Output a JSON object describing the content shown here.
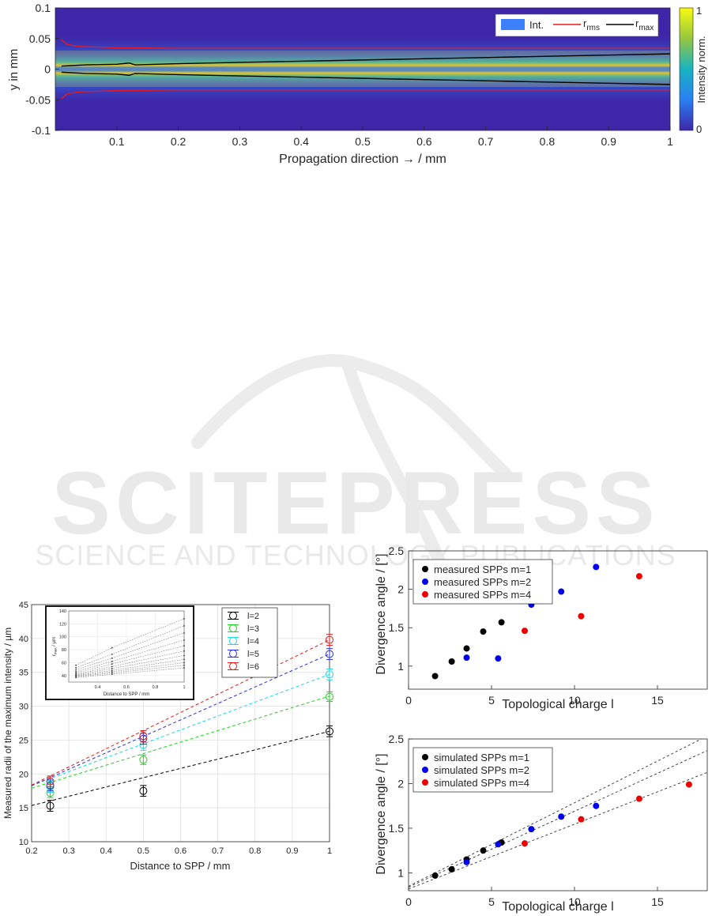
{
  "watermark": {
    "line1": "SCITEPRESS",
    "line2": "SCIENCE AND TECHNOLOGY PUBLICATIONS"
  },
  "chart_data": [
    {
      "id": "intensity",
      "type": "heatmap",
      "xlabel": "Propagation direction → / mm",
      "ylabel": "y in mm",
      "xlim": [
        0,
        1
      ],
      "ylim": [
        -0.1,
        0.1
      ],
      "xticks": [
        "0.1",
        "0.2",
        "0.3",
        "0.4",
        "0.5",
        "0.6",
        "0.7",
        "0.8",
        "0.9",
        "1"
      ],
      "yticks": [
        "0.1",
        "0.05",
        "0",
        "-0.05",
        "-0.1"
      ],
      "colorbar": {
        "label": "Intensity norm.",
        "ticks": [
          "1",
          "0"
        ]
      },
      "legend": {
        "position": "top-right",
        "entries": [
          {
            "label": "Int.",
            "color": "#3d80ff"
          },
          {
            "label": "r",
            "sub": "rms",
            "color": "#e8191c"
          },
          {
            "label": "r",
            "sub": "max",
            "color": "#000000"
          }
        ]
      },
      "series": [
        {
          "name": "rrms",
          "x": [
            0.01,
            0.02,
            0.04,
            0.07,
            0.1,
            0.2,
            0.3,
            0.5,
            0.7,
            1.0
          ],
          "y": [
            0.048,
            0.04,
            0.037,
            0.036,
            0.035,
            0.034,
            0.034,
            0.034,
            0.034,
            0.034
          ]
        },
        {
          "name": "rmax",
          "x": [
            0.01,
            0.05,
            0.1,
            0.12,
            0.13,
            0.2,
            0.3,
            0.4,
            0.5,
            0.6,
            0.7,
            0.8,
            0.9,
            1.0
          ],
          "y": [
            0.005,
            0.007,
            0.008,
            0.01,
            0.007,
            0.009,
            0.011,
            0.013,
            0.015,
            0.017,
            0.019,
            0.021,
            0.023,
            0.025
          ]
        }
      ]
    },
    {
      "id": "radii",
      "type": "scatter",
      "xlabel": "Distance to SPP / mm",
      "ylabel": "Measured radii of the maximum intensity / µm",
      "xlim": [
        0.2,
        1.0
      ],
      "ylim": [
        10,
        45
      ],
      "xticks": [
        "0.2",
        "0.3",
        "0.4",
        "0.5",
        "0.6",
        "0.7",
        "0.8",
        "0.9",
        "1"
      ],
      "yticks": [
        "10",
        "15",
        "20",
        "25",
        "30",
        "35",
        "40",
        "45"
      ],
      "legend_position": "top-right",
      "series": [
        {
          "name": "l=2",
          "color": "#000000",
          "x": [
            0.25,
            0.5,
            1.0
          ],
          "y": [
            15.3,
            17.5,
            26.3
          ],
          "err": 0.8,
          "fit": [
            12.6,
            13.7
          ]
        },
        {
          "name": "l=3",
          "color": "#1fd41f",
          "x": [
            0.25,
            0.5,
            1.0
          ],
          "y": [
            17.2,
            22.1,
            31.4
          ],
          "err": 0.7,
          "fit": [
            14.5,
            17.0
          ]
        },
        {
          "name": "l=4",
          "color": "#19d9e6",
          "x": [
            0.25,
            0.5,
            1.0
          ],
          "y": [
            18.1,
            24.3,
            34.7
          ],
          "err": 0.8,
          "fit": [
            14.2,
            20.5
          ]
        },
        {
          "name": "l=5",
          "color": "#2e2ee6",
          "x": [
            0.25,
            0.5,
            1.0
          ],
          "y": [
            18.3,
            25.2,
            37.7
          ],
          "err": 0.8,
          "fit": [
            13.4,
            24.3
          ]
        },
        {
          "name": "l=6",
          "color": "#e61919",
          "x": [
            0.25,
            0.5,
            1.0
          ],
          "y": [
            18.9,
            25.6,
            39.8
          ],
          "err": 0.8,
          "fit": [
            13.0,
            26.8
          ]
        }
      ],
      "inset": {
        "xlabel": "Distance to SPP / mm",
        "ylabel": "r",
        "ylabel_sub": "max",
        "ylabel_unit": " / µm",
        "xlim": [
          0.2,
          1.0
        ],
        "ylim": [
          30,
          140
        ],
        "xticks": [
          "0.4",
          "0.6",
          "0.8",
          "1"
        ],
        "yticks": [
          "140",
          "120",
          "100",
          "80",
          "60",
          "40"
        ],
        "x": [
          0.25,
          0.5,
          1.0
        ],
        "lines": [
          [
            37,
            42,
            52
          ],
          [
            38,
            44,
            56
          ],
          [
            39,
            46,
            60
          ],
          [
            40,
            48,
            65
          ],
          [
            41,
            51,
            71
          ],
          [
            42,
            54,
            78
          ],
          [
            44,
            58,
            86
          ],
          [
            46,
            62,
            95
          ],
          [
            49,
            67,
            106
          ],
          [
            52,
            73,
            117
          ],
          [
            56,
            83,
            128
          ]
        ]
      }
    },
    {
      "id": "div-measured",
      "type": "scatter",
      "xlabel": "Topological charge l",
      "ylabel": "Divergence angle / [°]",
      "xlim": [
        0,
        18
      ],
      "ylim": [
        0.7,
        2.5
      ],
      "xticks": [
        "0",
        "5",
        "10",
        "15"
      ],
      "yticks": [
        "1",
        "1.5",
        "2",
        "2.5"
      ],
      "legend_position": "top-left",
      "series": [
        {
          "name": "measured SPPs m=1",
          "color": "#000000",
          "x": [
            1.6,
            2.6,
            3.5,
            4.5,
            5.6
          ],
          "y": [
            0.87,
            1.06,
            1.23,
            1.45,
            1.57
          ]
        },
        {
          "name": "measured SPPs m=2",
          "color": "#0000ee",
          "x": [
            3.5,
            5.4,
            7.4,
            9.2,
            11.3
          ],
          "y": [
            1.11,
            1.1,
            1.8,
            1.97,
            2.29
          ]
        },
        {
          "name": "measured SPPs m=4",
          "color": "#ee0000",
          "x": [
            7.0,
            10.4,
            13.9
          ],
          "y": [
            1.46,
            1.65,
            2.17
          ]
        }
      ]
    },
    {
      "id": "div-simulated",
      "type": "scatter",
      "xlabel": "Topological charge l",
      "ylabel": "Divergence angle / [°]",
      "xlim": [
        0,
        18
      ],
      "ylim": [
        0.8,
        2.5
      ],
      "xticks": [
        "0",
        "5",
        "10",
        "15"
      ],
      "yticks": [
        "1",
        "1.5",
        "2",
        "2.5"
      ],
      "legend_position": "top-left",
      "series": [
        {
          "name": "simulated SPPs m=1",
          "color": "#000000",
          "x": [
            1.6,
            2.6,
            3.5,
            4.5,
            5.6
          ],
          "y": [
            0.97,
            1.04,
            1.15,
            1.25,
            1.34
          ],
          "fit": [
            0.85,
            0.0935
          ]
        },
        {
          "name": "simulated SPPs m=2",
          "color": "#0000ee",
          "x": [
            3.5,
            5.4,
            7.4,
            9.2,
            11.3
          ],
          "y": [
            1.12,
            1.32,
            1.49,
            1.63,
            1.75
          ],
          "fit": [
            0.84,
            0.085
          ]
        },
        {
          "name": "simulated SPPs m=4",
          "color": "#ee0000",
          "x": [
            7.0,
            10.4,
            13.9,
            16.9
          ],
          "y": [
            1.33,
            1.6,
            1.83,
            1.99
          ],
          "fit": [
            0.82,
            0.0725
          ]
        }
      ]
    }
  ]
}
